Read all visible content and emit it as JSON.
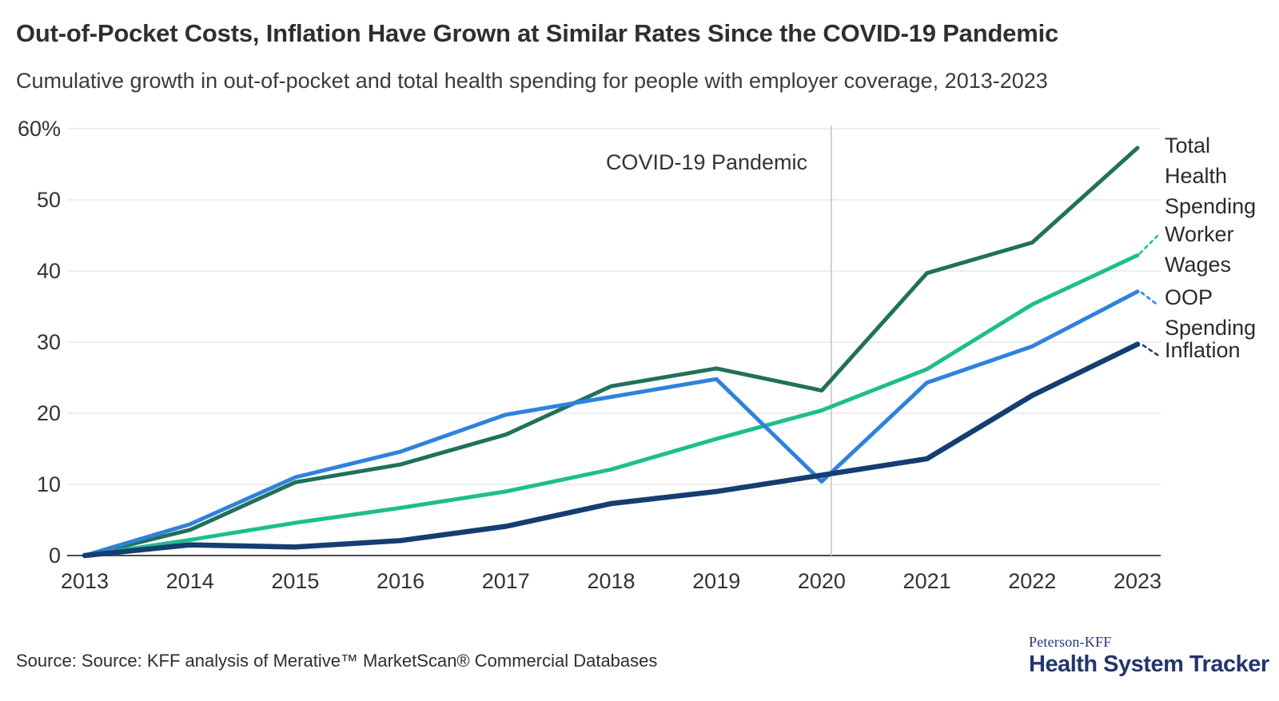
{
  "header": {
    "title": "Out-of-Pocket Costs, Inflation Have Grown at Similar Rates Since the COVID-19 Pandemic",
    "subtitle": "Cumulative growth in out-of-pocket and total health spending for people with employer coverage, 2013-2023"
  },
  "chart_data": {
    "type": "line",
    "x": [
      2013,
      2014,
      2015,
      2016,
      2017,
      2018,
      2019,
      2020,
      2021,
      2022,
      2023
    ],
    "x_tick_labels": [
      "2013",
      "2014",
      "2015",
      "2016",
      "2017",
      "2018",
      "2019",
      "2020",
      "2021",
      "2022",
      "2023"
    ],
    "y_ticks": [
      0,
      10,
      20,
      30,
      40,
      50,
      60
    ],
    "y_tick_labels": [
      "0",
      "10",
      "20",
      "30",
      "40",
      "50",
      "60%"
    ],
    "ylim": [
      0,
      60
    ],
    "unit": "percent",
    "grid": true,
    "annotation": {
      "label": "COVID-19 Pandemic",
      "x": 2020
    },
    "legend_position": "right-edge-labels",
    "series": [
      {
        "name": "Total Health Spending",
        "label_lines": [
          "Total",
          "Health",
          "Spending"
        ],
        "color": "#21705B",
        "values": [
          0,
          3.6,
          10.3,
          12.8,
          17.0,
          23.8,
          26.3,
          23.2,
          39.7,
          44.0,
          57.3
        ]
      },
      {
        "name": "Worker Wages",
        "label_lines": [
          "Worker",
          "Wages"
        ],
        "color": "#1EBE8A",
        "values": [
          0,
          2.2,
          4.6,
          6.7,
          9.0,
          12.1,
          16.4,
          20.4,
          26.2,
          35.3,
          42.2
        ]
      },
      {
        "name": "OOP Spending",
        "label_lines": [
          "OOP",
          "Spending"
        ],
        "color": "#2F82DC",
        "values": [
          0,
          4.4,
          11.0,
          14.6,
          19.8,
          22.3,
          24.8,
          10.4,
          24.3,
          29.4,
          37.1
        ]
      },
      {
        "name": "Inflation",
        "label_lines": [
          "Inflation"
        ],
        "color": "#143E71",
        "values": [
          0,
          1.5,
          1.2,
          2.1,
          4.1,
          7.3,
          9.0,
          11.3,
          13.6,
          22.5,
          29.7
        ]
      }
    ],
    "colors": {
      "gridline": "#E3E3E3",
      "axis_line": "#4A4A4A",
      "annotation_line": "#CFCFCF",
      "tick_label": "#333333",
      "series_label": "#2B2B2B"
    }
  },
  "footer": {
    "source": "Source: Source: KFF analysis of Merative™ MarketScan® Commercial Databases",
    "logo_top": "Peterson-KFF",
    "logo_bottom": "Health System Tracker"
  }
}
